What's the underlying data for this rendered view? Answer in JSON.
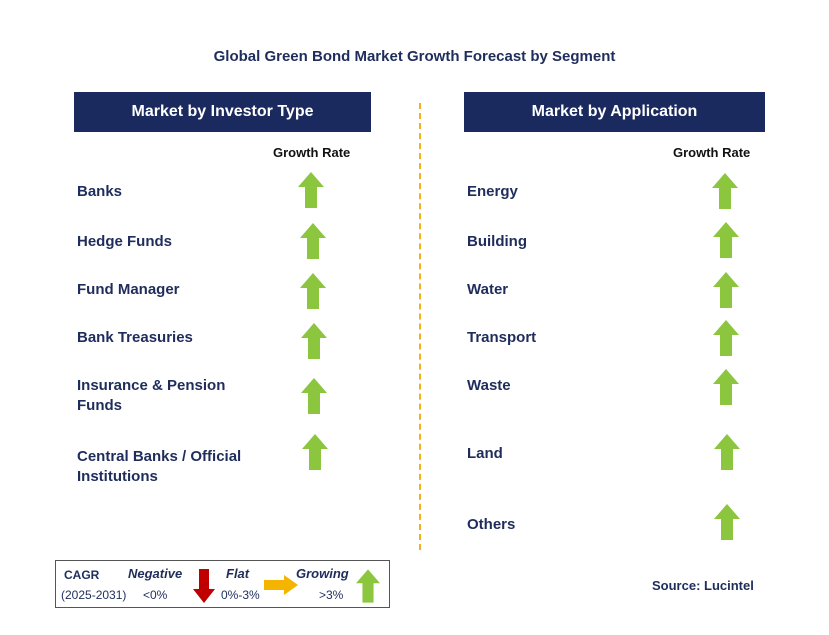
{
  "title": "Global Green Bond Market Growth Forecast by Segment",
  "left_panel": {
    "header": "Market by Investor Type",
    "growth_rate_label": "Growth Rate",
    "segments": [
      {
        "label": "Banks",
        "trend": "growing"
      },
      {
        "label": "Hedge Funds",
        "trend": "growing"
      },
      {
        "label": "Fund Manager",
        "trend": "growing"
      },
      {
        "label": "Bank Treasuries",
        "trend": "growing"
      },
      {
        "label": "Insurance & Pension Funds",
        "trend": "growing"
      },
      {
        "label": "Central Banks / Official Institutions",
        "trend": "growing"
      }
    ]
  },
  "right_panel": {
    "header": "Market by Application",
    "growth_rate_label": "Growth Rate",
    "segments": [
      {
        "label": "Energy",
        "trend": "growing"
      },
      {
        "label": "Building",
        "trend": "growing"
      },
      {
        "label": "Water",
        "trend": "growing"
      },
      {
        "label": "Transport",
        "trend": "growing"
      },
      {
        "label": "Waste",
        "trend": "growing"
      },
      {
        "label": "Land",
        "trend": "growing"
      },
      {
        "label": "Others",
        "trend": "growing"
      }
    ]
  },
  "legend": {
    "cagr_label": "CAGR",
    "period": "(2025-2031)",
    "negative_label": "Negative",
    "negative_range": "<0%",
    "flat_label": "Flat",
    "flat_range": "0%-3%",
    "growing_label": "Growing",
    "growing_range": ">3%"
  },
  "source": "Source: Lucintel",
  "colors": {
    "header_bg": "#1b2a5e",
    "growing_arrow": "#8cc63f",
    "negative_arrow": "#c00000",
    "flat_arrow": "#f5b400",
    "divider": "#f2b21f"
  }
}
